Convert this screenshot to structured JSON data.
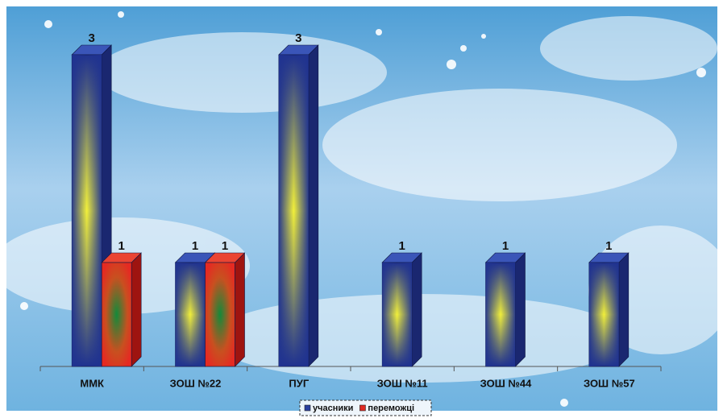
{
  "chart_data": {
    "type": "bar3d",
    "categories": [
      "ММК",
      "ЗОШ №22",
      "ПУГ",
      "ЗОШ №11",
      "ЗОШ №44",
      "ЗОШ №57"
    ],
    "series": [
      {
        "name": "учасники",
        "color": "#2b3f9e",
        "values": [
          3,
          1,
          3,
          1,
          1,
          1
        ]
      },
      {
        "name": "переможці",
        "color": "#e02a22",
        "values": [
          1,
          1,
          null,
          null,
          null,
          null
        ]
      }
    ],
    "ylim": [
      0,
      3
    ],
    "legend": "bottom"
  }
}
